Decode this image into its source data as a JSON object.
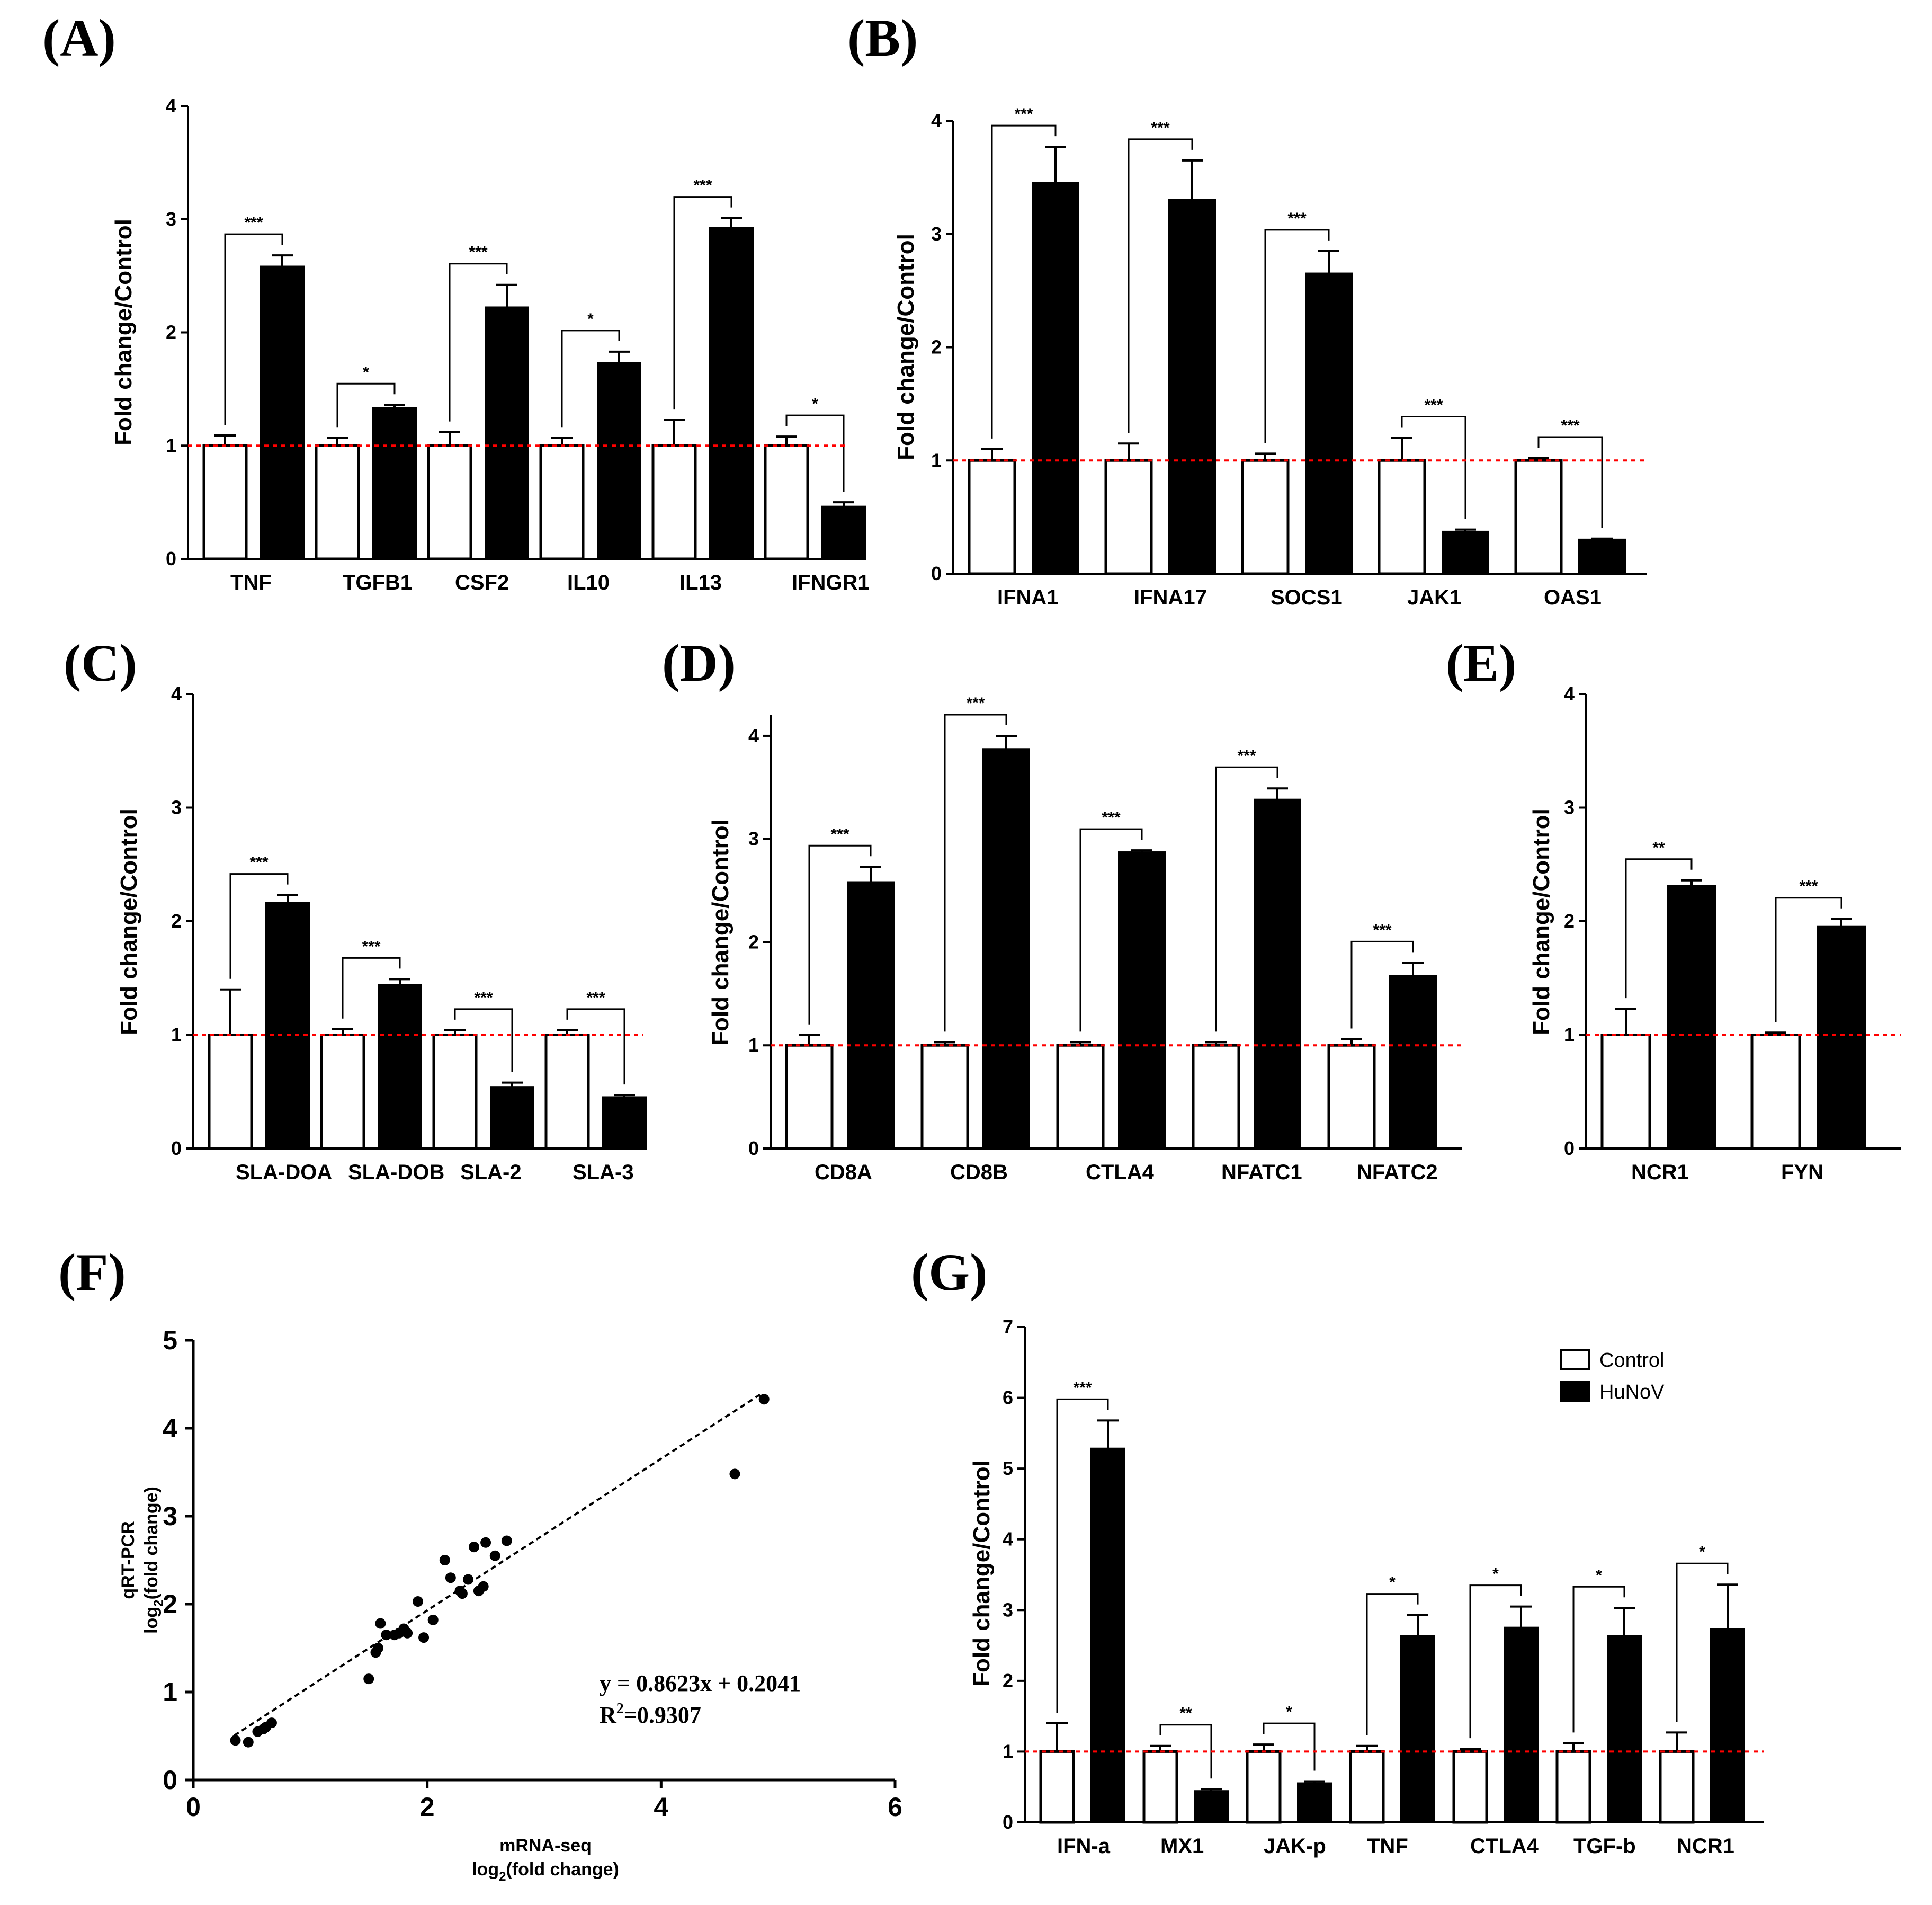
{
  "chart_data": [
    {
      "panel": "(A)",
      "type": "bar",
      "ylabel": "Fold change/Control",
      "ylim": [
        0,
        4
      ],
      "yticks": [
        "0",
        "1",
        "2",
        "3",
        "4"
      ],
      "reference_line": 1,
      "categories": [
        "TNF",
        "TGFB1",
        "CSF2",
        "IL10",
        "IL13",
        "IFNGR1"
      ],
      "series": [
        {
          "name": "Control",
          "values": [
            1.0,
            1.0,
            1.0,
            1.0,
            1.0,
            1.0
          ],
          "errors": [
            0.09,
            0.07,
            0.12,
            0.07,
            0.23,
            0.08
          ]
        },
        {
          "name": "HuNoV",
          "values": [
            2.58,
            1.33,
            2.22,
            1.73,
            2.92,
            0.46
          ],
          "errors": [
            0.1,
            0.03,
            0.2,
            0.1,
            0.09,
            0.04
          ]
        }
      ],
      "significance": [
        "***",
        "*",
        "***",
        "*",
        "***",
        "*"
      ]
    },
    {
      "panel": "(B)",
      "type": "bar",
      "ylabel": "Fold change/Control",
      "ylim": [
        0,
        4
      ],
      "yticks": [
        "0",
        "1",
        "2",
        "3",
        "4"
      ],
      "reference_line": 1,
      "categories": [
        "IFNA1",
        "IFNA17",
        "SOCS1",
        "JAK1",
        "OAS1"
      ],
      "series": [
        {
          "name": "Control",
          "values": [
            1.0,
            1.0,
            1.0,
            1.0,
            1.0
          ],
          "errors": [
            0.1,
            0.15,
            0.06,
            0.2,
            0.02
          ]
        },
        {
          "name": "HuNoV",
          "values": [
            3.45,
            3.3,
            2.65,
            0.37,
            0.3
          ],
          "errors": [
            0.32,
            0.35,
            0.2,
            0.02,
            0.01
          ]
        }
      ],
      "significance": [
        "***",
        "***",
        "***",
        "***",
        "***"
      ]
    },
    {
      "panel": "(C)",
      "type": "bar",
      "ylabel": "Fold change/Control",
      "ylim": [
        0,
        4
      ],
      "yticks": [
        "0",
        "1",
        "2",
        "3",
        "4"
      ],
      "reference_line": 1,
      "categories": [
        "SLA-DOA",
        "SLA-DOB",
        "SLA-2",
        "SLA-3"
      ],
      "series": [
        {
          "name": "Control",
          "values": [
            1.0,
            1.0,
            1.0,
            1.0
          ],
          "errors": [
            0.4,
            0.05,
            0.04,
            0.04
          ]
        },
        {
          "name": "HuNoV",
          "values": [
            2.16,
            1.44,
            0.54,
            0.45
          ],
          "errors": [
            0.07,
            0.05,
            0.04,
            0.02
          ]
        }
      ],
      "significance": [
        "***",
        "***",
        "***",
        "***"
      ]
    },
    {
      "panel": "(D)",
      "type": "bar",
      "ylabel": "Fold change/Control",
      "ylim": [
        0,
        4.2
      ],
      "yticks": [
        "0",
        "1",
        "2",
        "3",
        "4"
      ],
      "reference_line": 1,
      "categories": [
        "CD8A",
        "CD8B",
        "CTLA4",
        "NFATC1",
        "NFATC2"
      ],
      "series": [
        {
          "name": "Control",
          "values": [
            1.0,
            1.0,
            1.0,
            1.0,
            1.0
          ],
          "errors": [
            0.1,
            0.03,
            0.03,
            0.03,
            0.06
          ]
        },
        {
          "name": "HuNoV",
          "values": [
            2.58,
            3.87,
            2.87,
            3.38,
            1.67
          ],
          "errors": [
            0.15,
            0.13,
            0.02,
            0.11,
            0.13
          ]
        }
      ],
      "significance": [
        "***",
        "***",
        "***",
        "***",
        "***"
      ]
    },
    {
      "panel": "(E)",
      "type": "bar",
      "ylabel": "Fold change/Control",
      "ylim": [
        0,
        4
      ],
      "yticks": [
        "0",
        "1",
        "2",
        "3",
        "4"
      ],
      "reference_line": 1,
      "categories": [
        "NCR1",
        "FYN"
      ],
      "series": [
        {
          "name": "Control",
          "values": [
            1.0,
            1.0
          ],
          "errors": [
            0.23,
            0.02
          ]
        },
        {
          "name": "HuNoV",
          "values": [
            2.31,
            1.95
          ],
          "errors": [
            0.05,
            0.07
          ]
        }
      ],
      "significance": [
        "**",
        "***"
      ]
    },
    {
      "panel": "(F)",
      "type": "scatter",
      "xlabel_line1": "mRNA-seq",
      "xlabel_line2": "log",
      "xlabel_line2_sub": "2",
      "xlabel_line2_end": "(fold change)",
      "ylabel_line1": "qRT-PCR",
      "ylabel_line2": "log",
      "ylabel_line2_sub": "2",
      "ylabel_line2_end": "(fold change)",
      "xlim": [
        0,
        6
      ],
      "ylim": [
        0,
        5
      ],
      "xticks": [
        "0",
        "2",
        "4",
        "6"
      ],
      "yticks": [
        "0",
        "1",
        "2",
        "3",
        "4",
        "5"
      ],
      "x": [
        0.36,
        0.47,
        0.55,
        0.6,
        0.62,
        0.67,
        1.5,
        1.56,
        1.58,
        1.6,
        1.65,
        1.72,
        1.76,
        1.8,
        1.83,
        1.92,
        1.97,
        2.05,
        2.15,
        2.2,
        2.28,
        2.3,
        2.35,
        2.4,
        2.44,
        2.48,
        2.5,
        2.58,
        2.68,
        4.63,
        4.88
      ],
      "y": [
        0.45,
        0.43,
        0.55,
        0.58,
        0.6,
        0.65,
        1.15,
        1.45,
        1.5,
        1.78,
        1.65,
        1.65,
        1.67,
        1.72,
        1.67,
        2.03,
        1.62,
        1.82,
        2.5,
        2.3,
        2.15,
        2.12,
        2.28,
        2.65,
        2.15,
        2.2,
        2.7,
        2.55,
        2.72,
        3.48,
        4.33
      ],
      "fit": {
        "slope": 0.8623,
        "intercept": 0.2041,
        "x_range": [
          0.35,
          4.85
        ]
      },
      "equation": "y = 0.8623x + 0.2041",
      "r2_prefix": "R",
      "r2_sup": "2",
      "r2_value": "=0.9307"
    },
    {
      "panel": "(G)",
      "type": "bar",
      "ylabel": "Fold change/Control",
      "ylim": [
        0,
        7
      ],
      "yticks": [
        "0",
        "1",
        "2",
        "3",
        "4",
        "5",
        "6",
        "7"
      ],
      "reference_line": 1,
      "categories": [
        "IFN-a",
        "MX1",
        "JAK-p",
        "TNF",
        "CTLA4",
        "TGF-b",
        "NCR1"
      ],
      "series": [
        {
          "name": "Control",
          "values": [
            1.0,
            1.0,
            1.0,
            1.0,
            1.0,
            1.0,
            1.0
          ],
          "errors": [
            0.4,
            0.08,
            0.1,
            0.08,
            0.04,
            0.12,
            0.27
          ]
        },
        {
          "name": "HuNoV",
          "values": [
            5.28,
            0.44,
            0.55,
            2.63,
            2.75,
            2.63,
            2.73
          ],
          "errors": [
            0.4,
            0.03,
            0.03,
            0.3,
            0.3,
            0.4,
            0.63
          ]
        }
      ],
      "significance": [
        "***",
        "**",
        "*",
        "*",
        "*",
        "*",
        "*"
      ],
      "legend": [
        "Control",
        "HuNoV"
      ]
    }
  ]
}
